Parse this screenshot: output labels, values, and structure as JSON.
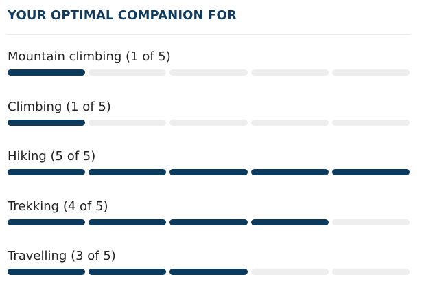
{
  "title": "YOUR OPTIMAL COMPANION FOR",
  "segments": 5,
  "items": [
    {
      "label": "Mountain climbing (1 of 5)",
      "level": 1
    },
    {
      "label": "Climbing (1 of 5)",
      "level": 1
    },
    {
      "label": "Hiking (5 of 5)",
      "level": 5
    },
    {
      "label": "Trekking (4 of 5)",
      "level": 4
    },
    {
      "label": "Travelling (3 of 5)",
      "level": 3
    }
  ]
}
